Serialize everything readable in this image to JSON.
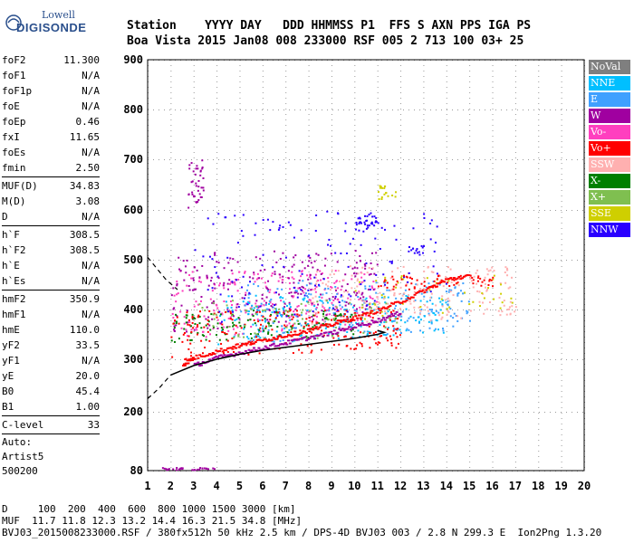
{
  "logo": {
    "line1": "Lowell",
    "line2": "DIGISONDE"
  },
  "header": {
    "line1": "Station    YYYY DAY   DDD HHMMSS P1  FFS S AXN PPS IGA PS",
    "line2": "Boa Vista 2015 Jan08 008 233000 RSF 005 2 713 100 03+ 25"
  },
  "params": {
    "group1": [
      [
        "foF2",
        "11.300"
      ],
      [
        "foF1",
        "N/A"
      ],
      [
        "foF1p",
        "N/A"
      ],
      [
        "foE",
        "N/A"
      ],
      [
        "foEp",
        "0.46"
      ],
      [
        "fxI",
        "11.65"
      ],
      [
        "foEs",
        "N/A"
      ],
      [
        "fmin",
        "2.50"
      ]
    ],
    "group2": [
      [
        "MUF(D)",
        "34.83"
      ],
      [
        "M(D)",
        "3.08"
      ],
      [
        "D",
        "N/A"
      ]
    ],
    "group3": [
      [
        "h`F",
        "308.5"
      ],
      [
        "h`F2",
        "308.5"
      ],
      [
        "h`E",
        "N/A"
      ],
      [
        "h`Es",
        "N/A"
      ]
    ],
    "group4": [
      [
        "hmF2",
        "350.9"
      ],
      [
        "hmF1",
        "N/A"
      ],
      [
        "hmE",
        "110.0"
      ],
      [
        "yF2",
        "33.5"
      ],
      [
        "yF1",
        "N/A"
      ],
      [
        "yE",
        "20.0"
      ],
      [
        "B0",
        "45.4"
      ],
      [
        "B1",
        "1.00"
      ]
    ],
    "group5": [
      [
        "C-level",
        "33"
      ]
    ],
    "auto": [
      "Auto:",
      "Artist5",
      "500200"
    ]
  },
  "bottom": {
    "d_line": "D     100  200  400  600  800 1000 1500 3000 [km]",
    "muf_line": "MUF  11.7 11.8 12.3 13.2 14.4 16.3 21.5 34.8 [MHz]",
    "file_line": "BVJ03_2015008233000.RSF / 380fx512h 50 kHz 2.5 km / DPS-4D BVJ03 003 / 2.8 N 299.3 E  Ion2Png 1.3.20"
  },
  "legend": [
    {
      "label": "NoVal",
      "color": "#7f7f7f"
    },
    {
      "label": "NNE",
      "color": "#00bfff"
    },
    {
      "label": "E",
      "color": "#3fa0ff"
    },
    {
      "label": "W",
      "color": "#a000a0"
    },
    {
      "label": "Vo-",
      "color": "#ff3fbf"
    },
    {
      "label": "Vo+",
      "color": "#ff0000"
    },
    {
      "label": "SSW",
      "color": "#ffb0b0"
    },
    {
      "label": "X-",
      "color": "#007f00"
    },
    {
      "label": "X+",
      "color": "#7fbf50"
    },
    {
      "label": "SSE",
      "color": "#cfcf00"
    },
    {
      "label": "NNW",
      "color": "#2a00ff"
    }
  ],
  "chart_data": {
    "type": "scatter",
    "xlim": [
      1,
      20
    ],
    "ylim": [
      80,
      900
    ],
    "x_ticks": [
      "1",
      "2",
      "3",
      "4",
      "5",
      "6",
      "7",
      "8",
      "9",
      "10",
      "11",
      "12",
      "13",
      "14",
      "15",
      "16",
      "17",
      "18",
      "19",
      "20"
    ],
    "y_ticks": [
      "80",
      "200",
      "300",
      "400",
      "500",
      "600",
      "700",
      "800",
      "900"
    ],
    "grid": true,
    "profile_solid": [
      [
        2.0,
        270
      ],
      [
        3,
        288
      ],
      [
        4,
        300
      ],
      [
        5,
        310
      ],
      [
        6,
        318
      ],
      [
        7,
        324
      ],
      [
        8,
        330
      ],
      [
        9,
        336
      ],
      [
        10,
        342
      ],
      [
        11,
        350
      ],
      [
        11.3,
        354
      ],
      [
        11,
        358
      ]
    ],
    "profile_dashed_low": [
      [
        1.0,
        225
      ],
      [
        1.5,
        245
      ],
      [
        2.0,
        270
      ]
    ],
    "profile_dashed_high": [
      [
        1.0,
        505
      ],
      [
        1.8,
        460
      ],
      [
        2.3,
        440
      ]
    ],
    "trace_o": [
      [
        2.5,
        292
      ],
      [
        3,
        305
      ],
      [
        4,
        318
      ],
      [
        5,
        330
      ],
      [
        6,
        340
      ],
      [
        7,
        350
      ],
      [
        8,
        360
      ],
      [
        9,
        372
      ],
      [
        10,
        385
      ],
      [
        11,
        400
      ],
      [
        12,
        418
      ],
      [
        13,
        440
      ],
      [
        14,
        462
      ],
      [
        15,
        470
      ]
    ],
    "trace_x": [
      [
        3,
        290
      ],
      [
        4,
        305
      ],
      [
        5,
        315
      ],
      [
        6,
        325
      ],
      [
        7,
        335
      ],
      [
        8,
        345
      ],
      [
        9,
        355
      ],
      [
        10,
        368
      ],
      [
        11,
        380
      ],
      [
        12,
        396
      ]
    ],
    "scatter_clusters": [
      {
        "color": "#ff3fbf",
        "x": [
          2,
          11
        ],
        "y": [
          340,
          480
        ],
        "n": 260
      },
      {
        "color": "#a000a0",
        "x": [
          2,
          11
        ],
        "y": [
          350,
          520
        ],
        "n": 240
      },
      {
        "color": "#3fa0ff",
        "x": [
          5,
          15
        ],
        "y": [
          330,
          460
        ],
        "n": 220
      },
      {
        "color": "#00bfff",
        "x": [
          4,
          14
        ],
        "y": [
          330,
          430
        ],
        "n": 180
      },
      {
        "color": "#007f00",
        "x": [
          2,
          10
        ],
        "y": [
          330,
          400
        ],
        "n": 120
      },
      {
        "color": "#ff0000",
        "x": [
          2,
          12
        ],
        "y": [
          300,
          400
        ],
        "n": 220
      },
      {
        "color": "#ffb0b0",
        "x": [
          8,
          17
        ],
        "y": [
          360,
          490
        ],
        "n": 200
      },
      {
        "color": "#7fbf50",
        "x": [
          3,
          12
        ],
        "y": [
          330,
          420
        ],
        "n": 80
      },
      {
        "color": "#cfcf00",
        "x": [
          10,
          17
        ],
        "y": [
          380,
          470
        ],
        "n": 50
      },
      {
        "color": "#2a00ff",
        "x": [
          3,
          14
        ],
        "y": [
          360,
          600
        ],
        "n": 140
      },
      {
        "color": "#ff0000",
        "x": [
          11,
          16
        ],
        "y": [
          440,
          470
        ],
        "n": 60
      },
      {
        "color": "#a000a0",
        "x": [
          2.7,
          3.4
        ],
        "y": [
          600,
          700
        ],
        "n": 40
      },
      {
        "color": "#2a00ff",
        "x": [
          10,
          11
        ],
        "y": [
          550,
          590
        ],
        "n": 30
      },
      {
        "color": "#cfcf00",
        "x": [
          11,
          11.8
        ],
        "y": [
          620,
          650
        ],
        "n": 18
      },
      {
        "color": "#2a00ff",
        "x": [
          12.3,
          13
        ],
        "y": [
          510,
          530
        ],
        "n": 14
      },
      {
        "color": "#a000a0",
        "x": [
          1.5,
          4
        ],
        "y": [
          82,
          88
        ],
        "n": 30
      }
    ]
  }
}
